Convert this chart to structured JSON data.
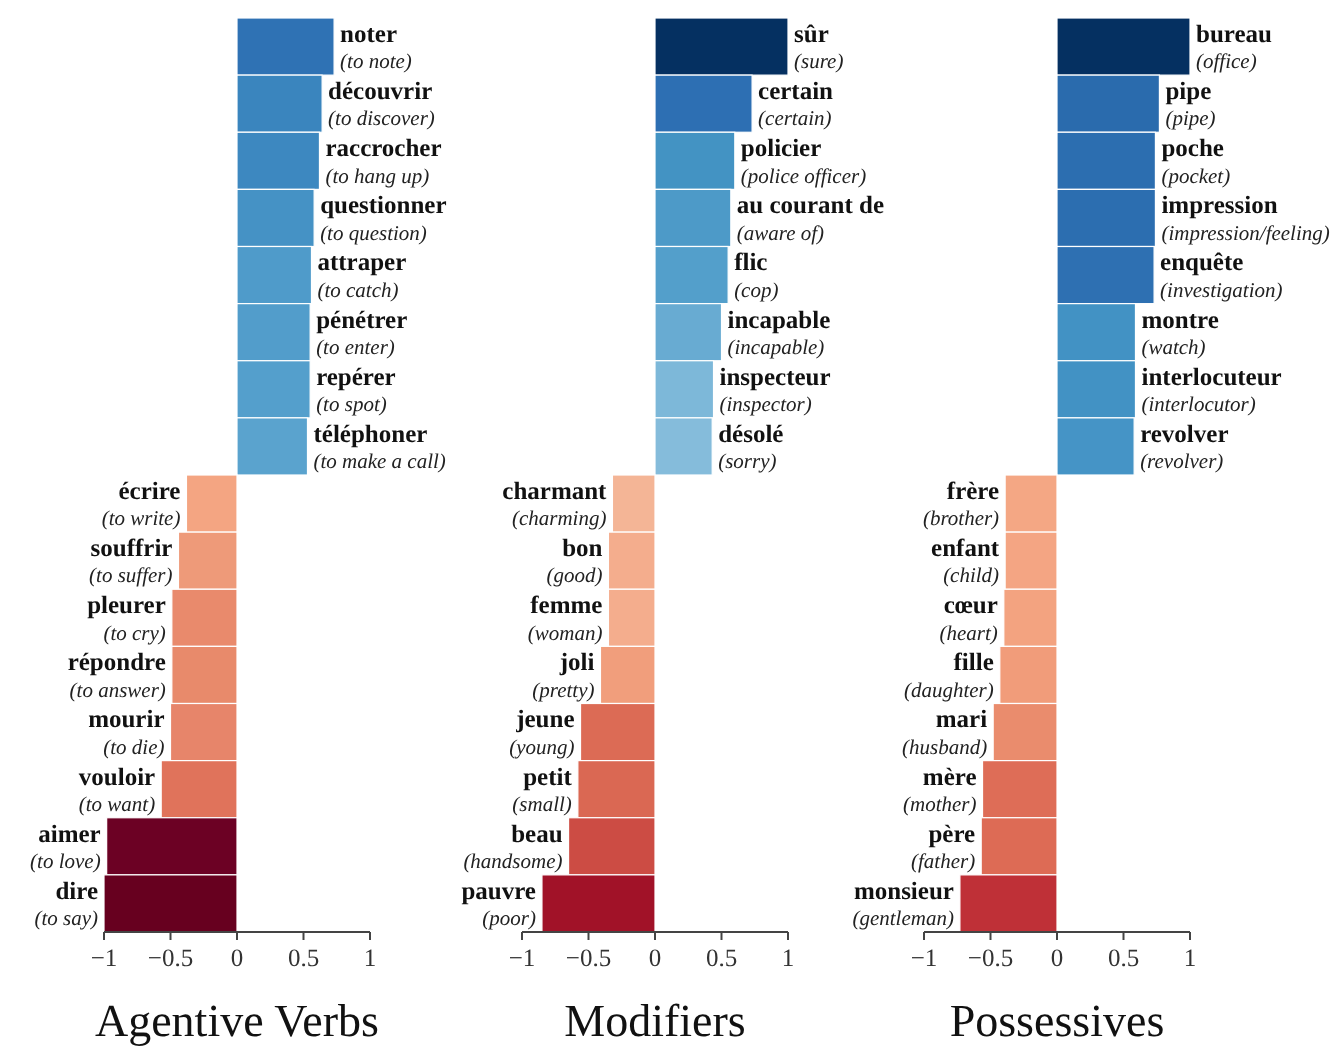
{
  "chart_data": [
    {
      "type": "bar",
      "orientation": "horizontal",
      "xlabel": "Agentive Verbs",
      "xlim": [
        -1,
        1
      ],
      "xticks": [
        -1,
        -0.5,
        0,
        0.5,
        1
      ],
      "grid": false,
      "categories": [
        "noter (to note)",
        "découvrir (to discover)",
        "raccrocher (to hang up)",
        "questionner (to question)",
        "attraper (to catch)",
        "pénétrer (to enter)",
        "repérer (to spot)",
        "téléphoner (to make a call)",
        "écrire (to write)",
        "souffrir (to suffer)",
        "pleurer (to cry)",
        "répondre (to answer)",
        "mourir (to die)",
        "vouloir (to want)",
        "aimer (to love)",
        "dire (to say)"
      ],
      "values": [
        0.73,
        0.64,
        0.62,
        0.58,
        0.56,
        0.55,
        0.55,
        0.53,
        -0.38,
        -0.44,
        -0.49,
        -0.49,
        -0.5,
        -0.57,
        -0.98,
        -1.0
      ],
      "colors": [
        "#2f72b4",
        "#3a85be",
        "#3d88c0",
        "#4592c5",
        "#4f9bca",
        "#529dcb",
        "#549fcc",
        "#5aa3ce",
        "#f4a582",
        "#ee9a79",
        "#e98a6c",
        "#e88a6b",
        "#e7856a",
        "#e0735b",
        "#6c0124",
        "#67001f"
      ]
    },
    {
      "type": "bar",
      "orientation": "horizontal",
      "xlabel": "Modifiers",
      "xlim": [
        -1,
        1
      ],
      "xticks": [
        -1,
        -0.5,
        0,
        0.5,
        1
      ],
      "grid": false,
      "categories": [
        "sûr (sure)",
        "certain (certain)",
        "policier (police officer)",
        "au courant de (aware of)",
        "flic (cop)",
        "incapable (incapable)",
        "inspecteur (inspector)",
        "désolé (sorry)",
        "charmant (charming)",
        "bon (good)",
        "femme (woman)",
        "joli (pretty)",
        "jeune (young)",
        "petit (small)",
        "beau (handsome)",
        "pauvre (poor)"
      ],
      "values": [
        1.0,
        0.73,
        0.6,
        0.57,
        0.55,
        0.5,
        0.44,
        0.43,
        -0.32,
        -0.35,
        -0.35,
        -0.41,
        -0.56,
        -0.58,
        -0.65,
        -0.85
      ],
      "colors": [
        "#053061",
        "#2d6fb3",
        "#4393c3",
        "#4d9ac8",
        "#539fcb",
        "#68abd2",
        "#7db8d9",
        "#85bcdb",
        "#f4b596",
        "#f4ad8d",
        "#f4ad8d",
        "#f19e7c",
        "#dc6b55",
        "#da6853",
        "#cc4c44",
        "#a11228"
      ]
    },
    {
      "type": "bar",
      "orientation": "horizontal",
      "xlabel": "Possessives",
      "xlim": [
        -1,
        1
      ],
      "xticks": [
        -1,
        -0.5,
        0,
        0.5,
        1
      ],
      "grid": false,
      "categories": [
        "bureau (office)",
        "pipe (pipe)",
        "poche (pocket)",
        "impression (impression/feeling)",
        "enquête (investigation)",
        "montre (watch)",
        "interlocuteur (interlocutor)",
        "revolver (revolver)",
        "frère (brother)",
        "enfant (child)",
        "cœur (heart)",
        "fille (daughter)",
        "mari (husband)",
        "mère (mother)",
        "père (father)",
        "monsieur (gentleman)"
      ],
      "values": [
        1.0,
        0.77,
        0.74,
        0.74,
        0.73,
        0.59,
        0.59,
        0.58,
        -0.39,
        -0.39,
        -0.4,
        -0.43,
        -0.48,
        -0.56,
        -0.57,
        -0.73
      ],
      "colors": [
        "#053061",
        "#2a6bad",
        "#2c6eb0",
        "#2c6eb0",
        "#2e70b2",
        "#4292c4",
        "#4292c4",
        "#4594c6",
        "#f4a784",
        "#f4a583",
        "#f3a380",
        "#f19c7a",
        "#ea8c6d",
        "#de6d57",
        "#dd6b55",
        "#bf3037"
      ]
    }
  ]
}
